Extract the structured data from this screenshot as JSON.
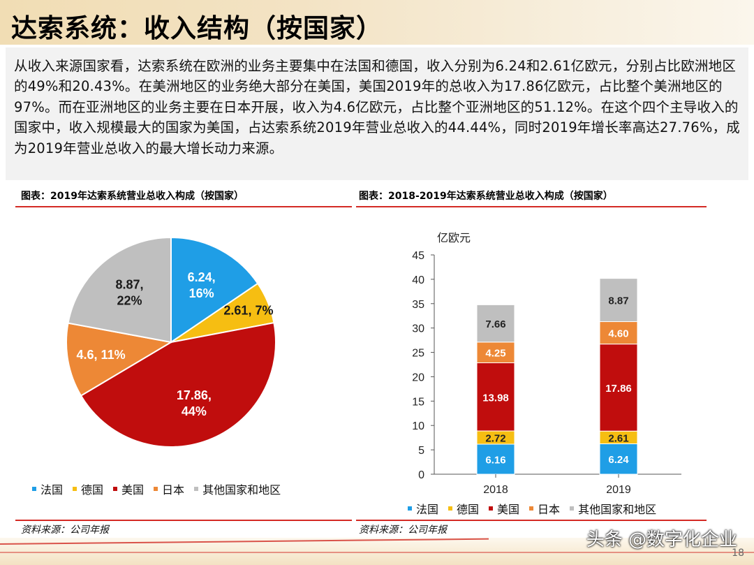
{
  "title": "达索系统：收入结构（按国家）",
  "intro": "从收入来源国家看，达索系统在欧洲的业务主要集中在法国和德国，收入分别为6.24和2.61亿欧元，分别占比欧洲地区的49%和20.43%。在美洲地区的业务绝大部分在美国，美国2019年的总收入为17.86亿欧元，占比整个美洲地区的97%。而在亚洲地区的业务主要在日本开展，收入为4.6亿欧元，占比整个亚洲地区的51.12%。在这个四个主导收入的国家中，收入规模最大的国家为美国，占达索系统2019年营业总收入的44.44%，同时2019年增长率高达27.76%，成为2019年营业总收入的最大增长动力来源。",
  "colors": {
    "france": "#1f9ee6",
    "germany": "#f6be12",
    "usa": "#c00d0d",
    "japan": "#ed8836",
    "others": "#bfbfbf",
    "rule": "#d42a24"
  },
  "source_label": "资料来源：公司年报",
  "watermark": "头条 @数字化企业",
  "page_number": "18",
  "chart_data": [
    {
      "type": "pie",
      "title": "图表：2019年达索系统营业总收入构成（按国家）",
      "categories": [
        "法国",
        "德国",
        "美国",
        "日本",
        "其他国家和地区"
      ],
      "values": [
        6.24,
        2.61,
        17.86,
        4.6,
        8.87
      ],
      "labels": [
        "6.24, 16%",
        "2.61, 7%",
        "17.86, 44%",
        "4.6, 11%",
        "8.87, 22%"
      ],
      "legend": [
        "法国",
        "德国",
        "美国",
        "日本",
        "其他国家和地区"
      ],
      "legend_position": "bottom"
    },
    {
      "type": "bar",
      "stacked": true,
      "title": "图表：2018-2019年达索系统营业总收入构成（按国家）",
      "ylabel": "亿欧元",
      "categories": [
        "2018",
        "2019"
      ],
      "ylim": [
        0,
        45
      ],
      "yticks": [
        0,
        5,
        10,
        15,
        20,
        25,
        30,
        35,
        40,
        45
      ],
      "series": [
        {
          "name": "法国",
          "values": [
            6.16,
            6.24
          ]
        },
        {
          "name": "德国",
          "values": [
            2.72,
            2.61
          ]
        },
        {
          "name": "美国",
          "values": [
            13.98,
            17.86
          ]
        },
        {
          "name": "日本",
          "values": [
            4.25,
            4.6
          ]
        },
        {
          "name": "其他国家和地区",
          "values": [
            7.66,
            8.87
          ]
        }
      ],
      "legend_position": "bottom"
    }
  ]
}
